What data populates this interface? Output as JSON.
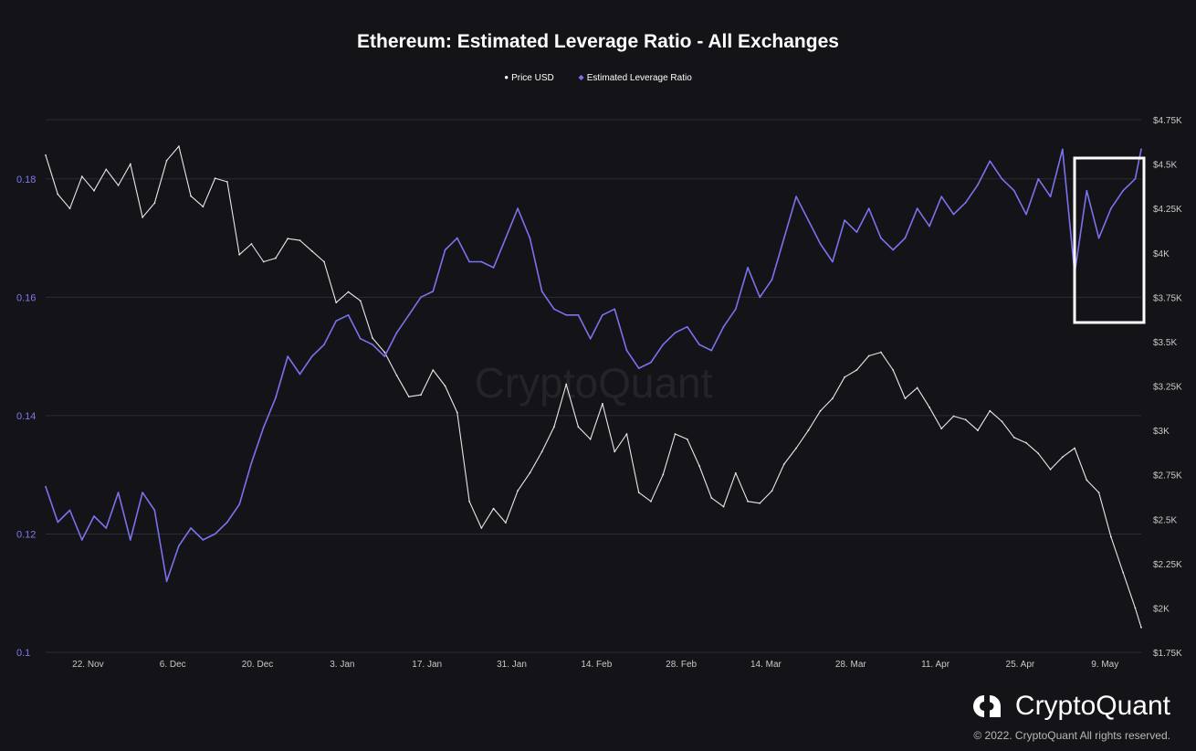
{
  "chart_data": {
    "type": "line",
    "title": "Ethereum: Estimated Leverage Ratio - All Exchanges",
    "legend": {
      "placement": "top-center",
      "entries": [
        "Price USD",
        "Estimated Leverage Ratio"
      ]
    },
    "grid": true,
    "x_tick_labels": [
      "22. Nov",
      "6. Dec",
      "20. Dec",
      "3. Jan",
      "17. Jan",
      "31. Jan",
      "14. Feb",
      "28. Feb",
      "14. Mar",
      "28. Mar",
      "11. Apr",
      "25. Apr",
      "9. May"
    ],
    "x_range": [
      "2021-11-15",
      "2022-05-15"
    ],
    "y_left": {
      "ticks": [
        "0.1",
        "0.12",
        "0.14",
        "0.16",
        "0.18"
      ],
      "range": [
        0.1,
        0.19
      ]
    },
    "y_right": {
      "ticks": [
        "$1.75K",
        "$2K",
        "$2.25K",
        "$2.5K",
        "$2.75K",
        "$3K",
        "$3.25K",
        "$3.5K",
        "$3.75K",
        "$4K",
        "$4.25K",
        "$4.5K",
        "$4.75K"
      ],
      "range": [
        1750,
        4750
      ]
    },
    "series": [
      {
        "name": "Price USD",
        "color": "#e8e8e8",
        "axis": "right",
        "x": [
          "2021-11-15",
          "2021-11-17",
          "2021-11-19",
          "2021-11-21",
          "2021-11-23",
          "2021-11-25",
          "2021-11-27",
          "2021-11-29",
          "2021-12-01",
          "2021-12-03",
          "2021-12-05",
          "2021-12-07",
          "2021-12-09",
          "2021-12-11",
          "2021-12-13",
          "2021-12-15",
          "2021-12-17",
          "2021-12-19",
          "2021-12-21",
          "2021-12-23",
          "2021-12-25",
          "2021-12-27",
          "2021-12-29",
          "2021-12-31",
          "2022-01-02",
          "2022-01-04",
          "2022-01-06",
          "2022-01-08",
          "2022-01-10",
          "2022-01-12",
          "2022-01-14",
          "2022-01-16",
          "2022-01-18",
          "2022-01-20",
          "2022-01-22",
          "2022-01-24",
          "2022-01-26",
          "2022-01-28",
          "2022-01-30",
          "2022-02-01",
          "2022-02-03",
          "2022-02-05",
          "2022-02-07",
          "2022-02-09",
          "2022-02-11",
          "2022-02-13",
          "2022-02-15",
          "2022-02-17",
          "2022-02-19",
          "2022-02-21",
          "2022-02-23",
          "2022-02-25",
          "2022-02-27",
          "2022-03-01",
          "2022-03-03",
          "2022-03-05",
          "2022-03-07",
          "2022-03-09",
          "2022-03-11",
          "2022-03-13",
          "2022-03-15",
          "2022-03-17",
          "2022-03-19",
          "2022-03-21",
          "2022-03-23",
          "2022-03-25",
          "2022-03-27",
          "2022-03-29",
          "2022-03-31",
          "2022-04-02",
          "2022-04-04",
          "2022-04-06",
          "2022-04-08",
          "2022-04-10",
          "2022-04-12",
          "2022-04-14",
          "2022-04-16",
          "2022-04-18",
          "2022-04-20",
          "2022-04-22",
          "2022-04-24",
          "2022-04-26",
          "2022-04-28",
          "2022-04-30",
          "2022-05-02",
          "2022-05-04",
          "2022-05-06",
          "2022-05-08",
          "2022-05-10",
          "2022-05-12",
          "2022-05-14",
          "2022-05-15"
        ],
        "values": [
          4550,
          4330,
          4250,
          4430,
          4350,
          4470,
          4380,
          4500,
          4200,
          4280,
          4520,
          4600,
          4320,
          4260,
          4420,
          4400,
          3990,
          4050,
          3950,
          3970,
          4080,
          4070,
          4010,
          3950,
          3720,
          3780,
          3730,
          3520,
          3440,
          3310,
          3190,
          3200,
          3340,
          3250,
          3100,
          2600,
          2450,
          2560,
          2480,
          2660,
          2760,
          2880,
          3020,
          3260,
          3020,
          2950,
          3150,
          2880,
          2980,
          2650,
          2600,
          2750,
          2980,
          2950,
          2800,
          2620,
          2570,
          2760,
          2600,
          2590,
          2660,
          2810,
          2900,
          3000,
          3110,
          3180,
          3300,
          3340,
          3420,
          3440,
          3340,
          3180,
          3240,
          3130,
          3010,
          3080,
          3060,
          3000,
          3110,
          3050,
          2960,
          2930,
          2870,
          2780,
          2850,
          2900,
          2720,
          2650,
          2400,
          2200,
          2000,
          1890
        ],
        "sampled": true
      },
      {
        "name": "Estimated Leverage Ratio",
        "color": "#7b72ee",
        "axis": "left",
        "x": [
          "2021-11-15",
          "2021-11-17",
          "2021-11-19",
          "2021-11-21",
          "2021-11-23",
          "2021-11-25",
          "2021-11-27",
          "2021-11-29",
          "2021-12-01",
          "2021-12-03",
          "2021-12-05",
          "2021-12-07",
          "2021-12-09",
          "2021-12-11",
          "2021-12-13",
          "2021-12-15",
          "2021-12-17",
          "2021-12-19",
          "2021-12-21",
          "2021-12-23",
          "2021-12-25",
          "2021-12-27",
          "2021-12-29",
          "2021-12-31",
          "2022-01-02",
          "2022-01-04",
          "2022-01-06",
          "2022-01-08",
          "2022-01-10",
          "2022-01-12",
          "2022-01-14",
          "2022-01-16",
          "2022-01-18",
          "2022-01-20",
          "2022-01-22",
          "2022-01-24",
          "2022-01-26",
          "2022-01-28",
          "2022-01-30",
          "2022-02-01",
          "2022-02-03",
          "2022-02-05",
          "2022-02-07",
          "2022-02-09",
          "2022-02-11",
          "2022-02-13",
          "2022-02-15",
          "2022-02-17",
          "2022-02-19",
          "2022-02-21",
          "2022-02-23",
          "2022-02-25",
          "2022-02-27",
          "2022-03-01",
          "2022-03-03",
          "2022-03-05",
          "2022-03-07",
          "2022-03-09",
          "2022-03-11",
          "2022-03-13",
          "2022-03-15",
          "2022-03-17",
          "2022-03-19",
          "2022-03-21",
          "2022-03-23",
          "2022-03-25",
          "2022-03-27",
          "2022-03-29",
          "2022-03-31",
          "2022-04-02",
          "2022-04-04",
          "2022-04-06",
          "2022-04-08",
          "2022-04-10",
          "2022-04-12",
          "2022-04-14",
          "2022-04-16",
          "2022-04-18",
          "2022-04-20",
          "2022-04-22",
          "2022-04-24",
          "2022-04-26",
          "2022-04-28",
          "2022-04-30",
          "2022-05-02",
          "2022-05-04",
          "2022-05-06",
          "2022-05-08",
          "2022-05-10",
          "2022-05-12",
          "2022-05-14",
          "2022-05-15"
        ],
        "values": [
          0.128,
          0.122,
          0.124,
          0.119,
          0.123,
          0.121,
          0.127,
          0.119,
          0.127,
          0.124,
          0.112,
          0.118,
          0.121,
          0.119,
          0.12,
          0.122,
          0.125,
          0.132,
          0.138,
          0.143,
          0.15,
          0.147,
          0.15,
          0.152,
          0.156,
          0.157,
          0.153,
          0.152,
          0.15,
          0.154,
          0.157,
          0.16,
          0.161,
          0.168,
          0.17,
          0.166,
          0.166,
          0.165,
          0.17,
          0.175,
          0.17,
          0.161,
          0.158,
          0.157,
          0.157,
          0.153,
          0.157,
          0.158,
          0.151,
          0.148,
          0.149,
          0.152,
          0.154,
          0.155,
          0.152,
          0.151,
          0.155,
          0.158,
          0.165,
          0.16,
          0.163,
          0.17,
          0.177,
          0.173,
          0.169,
          0.166,
          0.173,
          0.171,
          0.175,
          0.17,
          0.168,
          0.17,
          0.175,
          0.172,
          0.177,
          0.174,
          0.176,
          0.179,
          0.183,
          0.18,
          0.178,
          0.174,
          0.18,
          0.177,
          0.185,
          0.164,
          0.178,
          0.17,
          0.175,
          0.178,
          0.18,
          0.185
        ],
        "sampled": true
      }
    ],
    "annotations": [
      "white rectangle highlighting early-to-mid May leverage ratio"
    ]
  },
  "watermark": "CryptoQuant",
  "brand": {
    "name": "CryptoQuant",
    "copyright": "© 2022. CryptoQuant All rights reserved."
  },
  "colors": {
    "background": "#141318",
    "leverage": "#7b72ee",
    "price": "#e8e8e8",
    "grid": "#2c2b33"
  }
}
